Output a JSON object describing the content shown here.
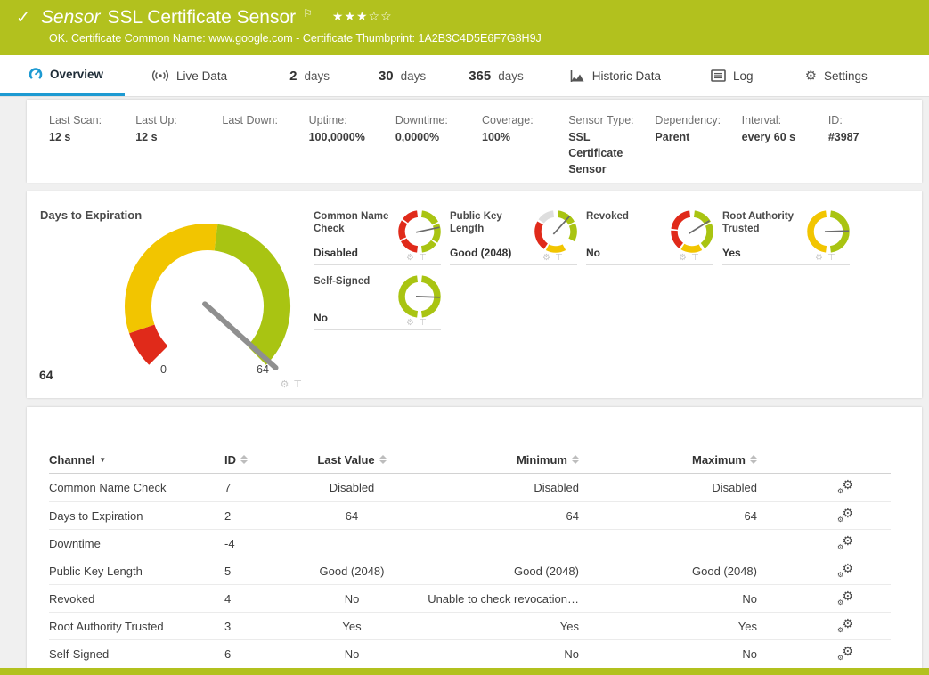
{
  "colors": {
    "green": "#b2c11e",
    "gauge_green": "#a9c412",
    "yellow": "#f2c500",
    "red": "#e02a1a",
    "gray": "#dedede",
    "blue": "#1d9ad2"
  },
  "icons": {
    "check": "✓",
    "flag": "⚐",
    "stars": "★★★☆☆",
    "gear": "⚙",
    "pin": "⊤",
    "sort_desc": "▼"
  },
  "header": {
    "kind": "Sensor",
    "title": "SSL Certificate Sensor",
    "status": "OK. Certificate Common Name: www.google.com - Certificate Thumbprint: 1A2B3C4D5E6F7G8H9J"
  },
  "tabs": [
    {
      "label": "Overview",
      "active": true
    },
    {
      "label": "Live Data"
    },
    {
      "number": "2",
      "label": "days"
    },
    {
      "number": "30",
      "label": "days"
    },
    {
      "number": "365",
      "label": "days"
    },
    {
      "label": "Historic Data"
    },
    {
      "label": "Log"
    },
    {
      "label": "Settings"
    }
  ],
  "info": [
    {
      "label": "Last Scan:",
      "value": "12 s"
    },
    {
      "label": "Last Up:",
      "value": "12 s"
    },
    {
      "label": "Last Down:",
      "value": ""
    },
    {
      "label": "Uptime:",
      "value": "100,0000%"
    },
    {
      "label": "Downtime:",
      "value": "0,0000%"
    },
    {
      "label": "Coverage:",
      "value": "100%"
    },
    {
      "label": "Sensor Type:",
      "value": "SSL Certificate Sensor"
    },
    {
      "label": "Dependency:",
      "value": "Parent"
    },
    {
      "label": "Interval:",
      "value": "every 60 s"
    },
    {
      "label": "ID:",
      "value": "#3987"
    }
  ],
  "gauges": {
    "main": {
      "title": "Days to Expiration",
      "value": "64",
      "min_label": "0",
      "max_label": "64",
      "segments": [
        [
          "red",
          225,
          251
        ],
        [
          "yellow",
          251,
          367
        ],
        [
          "gauge_green",
          367,
          495
        ]
      ],
      "needle": 132
    },
    "small": [
      {
        "name": "Common Name Check",
        "value": "Disabled",
        "segments": [
          [
            "red",
            187,
            242
          ],
          [
            "red",
            247,
            302
          ],
          [
            "red",
            307,
            353
          ],
          [
            "gauge_green",
            7,
            62
          ],
          [
            "gauge_green",
            67,
            122
          ],
          [
            "gauge_green",
            127,
            173
          ]
        ],
        "needle": 78
      },
      {
        "name": "Public Key Length",
        "value": "Good (2048)",
        "segments": [
          [
            "gray",
            305,
            353
          ],
          [
            "gauge_green",
            7,
            62
          ],
          [
            "gauge_green",
            67,
            118
          ],
          [
            "yellow",
            152,
            208
          ],
          [
            "red",
            214,
            299
          ]
        ],
        "needle": 42
      },
      {
        "name": "Revoked",
        "value": "No",
        "segments": [
          [
            "gauge_green",
            7,
            62
          ],
          [
            "gauge_green",
            67,
            143
          ],
          [
            "yellow",
            152,
            212
          ],
          [
            "red",
            218,
            273
          ],
          [
            "red",
            278,
            353
          ]
        ],
        "needle": 58
      },
      {
        "name": "Root Authority Trusted",
        "value": "Yes",
        "segments": [
          [
            "yellow",
            187,
            353
          ],
          [
            "gauge_green",
            7,
            173
          ]
        ],
        "needle": 88
      },
      {
        "name": "Self-Signed",
        "value": "No",
        "segments": [
          [
            "gauge_green",
            7,
            173
          ],
          [
            "gauge_green",
            187,
            353
          ]
        ],
        "needle": 92
      }
    ]
  },
  "table": {
    "headers": [
      {
        "label": "Channel"
      },
      {
        "label": "ID"
      },
      {
        "label": "Last Value"
      },
      {
        "label": "Minimum"
      },
      {
        "label": "Maximum"
      },
      {
        "label": ""
      }
    ],
    "rows": [
      {
        "channel": "Common Name Check",
        "id": "7",
        "last": "Disabled",
        "min": "Disabled",
        "max": "Disabled"
      },
      {
        "channel": "Days to Expiration",
        "id": "2",
        "last": "64",
        "min": "64",
        "max": "64"
      },
      {
        "channel": "Downtime",
        "id": "-4",
        "last": "",
        "min": "",
        "max": ""
      },
      {
        "channel": "Public Key Length",
        "id": "5",
        "last": "Good (2048)",
        "min": "Good (2048)",
        "max": "Good (2048)"
      },
      {
        "channel": "Revoked",
        "id": "4",
        "last": "No",
        "min": "Unable to check revocation…",
        "max": "No"
      },
      {
        "channel": "Root Authority Trusted",
        "id": "3",
        "last": "Yes",
        "min": "Yes",
        "max": "Yes"
      },
      {
        "channel": "Self-Signed",
        "id": "6",
        "last": "No",
        "min": "No",
        "max": "No"
      }
    ]
  }
}
